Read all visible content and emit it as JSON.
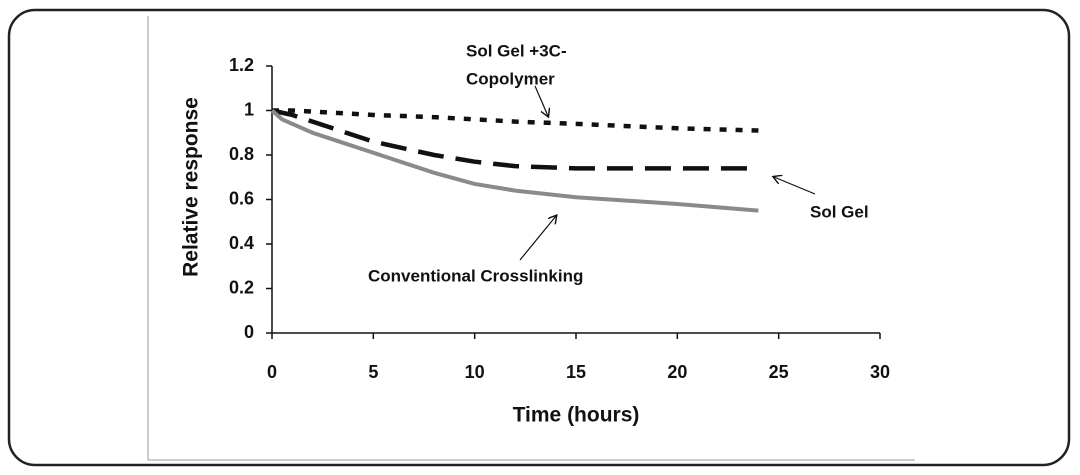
{
  "chart_data": {
    "type": "line",
    "xlabel": "Time (hours)",
    "ylabel": "Relative response",
    "xlim": [
      0,
      30
    ],
    "xticks": [
      0,
      5,
      10,
      15,
      20,
      25,
      30
    ],
    "ylim": [
      0,
      1.2
    ],
    "yticks": [
      0,
      0.2,
      0.4,
      0.6,
      0.8,
      1,
      1.2
    ],
    "series": [
      {
        "color": "#111111",
        "dash": "dotted",
        "x": [
          0,
          1,
          2,
          3,
          5,
          8,
          10,
          12,
          15,
          20,
          24
        ],
        "values": [
          1,
          1,
          0.995,
          0.99,
          0.98,
          0.97,
          0.96,
          0.95,
          0.94,
          0.92,
          0.91
        ]
      },
      {
        "color": "#111111",
        "dash": "dashed",
        "x": [
          0,
          1,
          2,
          3,
          5,
          8,
          10,
          12,
          15,
          20,
          24
        ],
        "values": [
          1,
          0.98,
          0.95,
          0.92,
          0.86,
          0.8,
          0.77,
          0.75,
          0.74,
          0.74,
          0.74
        ]
      },
      {
        "color": "#8a8a8a",
        "dash": "solid",
        "x": [
          0,
          0.5,
          2,
          3,
          5,
          8,
          10,
          12,
          15,
          20,
          24
        ],
        "values": [
          1,
          0.96,
          0.9,
          0.87,
          0.81,
          0.72,
          0.67,
          0.64,
          0.61,
          0.58,
          0.55
        ]
      }
    ],
    "annotations": [
      {
        "lines": [
          "Sol Gel +3C-",
          "Copolymer"
        ]
      },
      {
        "lines": [
          "Sol Gel"
        ]
      },
      {
        "lines": [
          "Conventional Crosslinking"
        ]
      }
    ]
  }
}
